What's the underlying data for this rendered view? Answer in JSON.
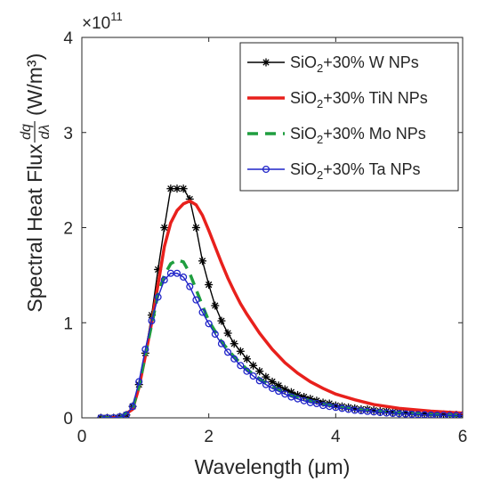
{
  "chart_data": {
    "type": "line",
    "title": "",
    "xlabel": "Wavelength (μm)",
    "ylabel": "Spectral Heat Flux dq/dλ (W/m³)",
    "ylabel_main": "Spectral Heat Flux",
    "ylabel_frac_num": "dq",
    "ylabel_frac_den": "dλ",
    "ylabel_unit": "(W/m³)",
    "exponent_label": "×10",
    "exponent_power": "11",
    "xlim": [
      0,
      6
    ],
    "ylim": [
      0,
      4
    ],
    "y_scale_factor": 100000000000.0,
    "xticks": [
      0,
      2,
      4,
      6
    ],
    "yticks": [
      0,
      1,
      2,
      3,
      4
    ],
    "grid": false,
    "legend_position": "top-right",
    "series": [
      {
        "name": "SiO₂+30% W NPs",
        "legend_base": "SiO",
        "legend_sub": "2",
        "legend_rest": "+30% W NPs",
        "color": "#000000",
        "style": "solid",
        "marker": "asterisk",
        "x": [
          0.3,
          0.4,
          0.5,
          0.6,
          0.7,
          0.8,
          0.9,
          1.0,
          1.1,
          1.2,
          1.3,
          1.4,
          1.5,
          1.6,
          1.7,
          1.8,
          1.9,
          2.0,
          2.1,
          2.2,
          2.3,
          2.4,
          2.5,
          2.6,
          2.7,
          2.8,
          2.9,
          3.0,
          3.1,
          3.2,
          3.3,
          3.4,
          3.5,
          3.6,
          3.7,
          3.8,
          3.9,
          4.0,
          4.1,
          4.2,
          4.3,
          4.4,
          4.5,
          4.6,
          4.7,
          4.8,
          4.9,
          5.0,
          5.1,
          5.2,
          5.3,
          5.4,
          5.5,
          5.6,
          5.7,
          5.8,
          5.9,
          6.0
        ],
        "y": [
          0.0,
          0.0,
          0.0,
          0.01,
          0.03,
          0.12,
          0.35,
          0.68,
          1.08,
          1.56,
          2.0,
          2.41,
          2.41,
          2.41,
          2.3,
          2.0,
          1.65,
          1.4,
          1.18,
          1.02,
          0.89,
          0.78,
          0.7,
          0.62,
          0.55,
          0.49,
          0.43,
          0.38,
          0.34,
          0.3,
          0.27,
          0.24,
          0.22,
          0.2,
          0.18,
          0.16,
          0.15,
          0.13,
          0.12,
          0.11,
          0.1,
          0.09,
          0.09,
          0.08,
          0.07,
          0.07,
          0.06,
          0.06,
          0.055,
          0.05,
          0.047,
          0.044,
          0.041,
          0.038,
          0.036,
          0.034,
          0.032,
          0.03
        ]
      },
      {
        "name": "SiO₂+30% TiN NPs",
        "legend_base": "SiO",
        "legend_sub": "2",
        "legend_rest": "+30% TiN NPs",
        "color": "#e8201c",
        "style": "solid",
        "marker": "none",
        "x": [
          0.3,
          0.6,
          0.8,
          0.9,
          1.0,
          1.1,
          1.2,
          1.3,
          1.4,
          1.5,
          1.6,
          1.7,
          1.8,
          1.9,
          2.0,
          2.1,
          2.2,
          2.3,
          2.4,
          2.5,
          2.6,
          2.8,
          3.0,
          3.2,
          3.4,
          3.6,
          3.8,
          4.0,
          4.3,
          4.6,
          5.0,
          5.5,
          6.0
        ],
        "y": [
          0.0,
          0.0,
          0.09,
          0.32,
          0.65,
          1.0,
          1.4,
          1.8,
          2.05,
          2.18,
          2.25,
          2.28,
          2.24,
          2.13,
          1.97,
          1.8,
          1.63,
          1.47,
          1.33,
          1.2,
          1.09,
          0.89,
          0.72,
          0.58,
          0.47,
          0.38,
          0.31,
          0.25,
          0.19,
          0.14,
          0.1,
          0.07,
          0.05
        ]
      },
      {
        "name": "SiO₂+30% Mo NPs",
        "legend_base": "SiO",
        "legend_sub": "2",
        "legend_rest": "+30% Mo NPs",
        "color": "#1f9e3f",
        "style": "dashed",
        "marker": "none",
        "x": [
          0.3,
          0.6,
          0.8,
          0.9,
          1.0,
          1.1,
          1.2,
          1.3,
          1.4,
          1.5,
          1.6,
          1.7,
          1.8,
          1.9,
          2.0,
          2.2,
          2.4,
          2.6,
          2.8,
          3.0,
          3.3,
          3.6,
          4.0,
          4.5,
          5.0,
          5.5,
          6.0
        ],
        "y": [
          0.0,
          0.0,
          0.1,
          0.33,
          0.66,
          0.98,
          1.3,
          1.5,
          1.62,
          1.66,
          1.64,
          1.52,
          1.35,
          1.18,
          1.02,
          0.8,
          0.64,
          0.51,
          0.41,
          0.33,
          0.24,
          0.18,
          0.12,
          0.08,
          0.05,
          0.035,
          0.025
        ]
      },
      {
        "name": "SiO₂+30% Ta NPs",
        "legend_base": "SiO",
        "legend_sub": "2",
        "legend_rest": "+30% Ta NPs",
        "color": "#1f23c8",
        "style": "solid",
        "marker": "circle",
        "x": [
          0.3,
          0.4,
          0.5,
          0.6,
          0.7,
          0.8,
          0.9,
          1.0,
          1.1,
          1.2,
          1.3,
          1.4,
          1.5,
          1.6,
          1.7,
          1.8,
          1.9,
          2.0,
          2.1,
          2.2,
          2.3,
          2.4,
          2.5,
          2.6,
          2.7,
          2.8,
          2.9,
          3.0,
          3.1,
          3.2,
          3.3,
          3.4,
          3.5,
          3.6,
          3.7,
          3.8,
          3.9,
          4.0,
          4.1,
          4.2,
          4.3,
          4.4,
          4.5,
          4.6,
          4.7,
          4.8,
          4.9,
          5.0,
          5.1,
          5.2,
          5.3,
          5.4,
          5.5,
          5.6,
          5.7,
          5.8,
          5.9,
          6.0
        ],
        "y": [
          0.0,
          0.0,
          0.0,
          0.01,
          0.03,
          0.12,
          0.38,
          0.72,
          1.02,
          1.27,
          1.45,
          1.52,
          1.52,
          1.48,
          1.38,
          1.24,
          1.11,
          0.99,
          0.88,
          0.78,
          0.69,
          0.62,
          0.55,
          0.49,
          0.44,
          0.39,
          0.35,
          0.31,
          0.28,
          0.25,
          0.22,
          0.2,
          0.18,
          0.16,
          0.15,
          0.13,
          0.12,
          0.11,
          0.1,
          0.09,
          0.08,
          0.075,
          0.068,
          0.062,
          0.056,
          0.051,
          0.047,
          0.043,
          0.04,
          0.037,
          0.034,
          0.032,
          0.03,
          0.028,
          0.026,
          0.025,
          0.024,
          0.023
        ]
      }
    ]
  }
}
